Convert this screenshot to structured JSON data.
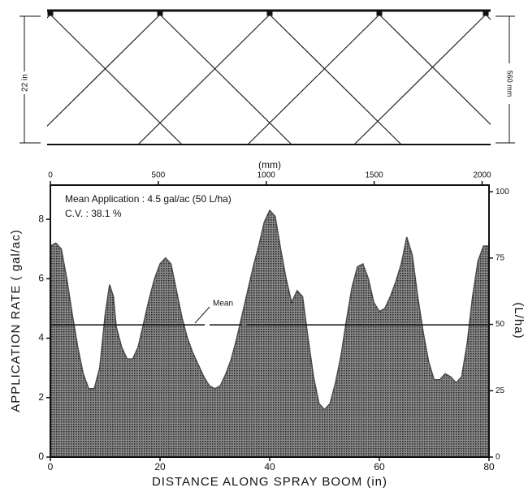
{
  "chart_data": {
    "type": "area",
    "color": "#4a4a4a",
    "boom_height_label": "22 in",
    "boom_height_metric_label": "560 mm",
    "annotations": [
      "Mean Application : 4.5 gal/ac (50 L/ha)",
      "C.V. : 38.1 %"
    ],
    "mean": 4.45,
    "mean_label": "Mean",
    "xlabel": "DISTANCE ALONG SPRAY BOOM (in)",
    "ylabel": "APPLICATION RATE ( gal/ac)",
    "y2label": "(L/ha)",
    "x2label": "(mm)",
    "x": [
      0,
      1,
      2,
      3,
      4,
      5,
      6,
      7,
      8,
      9,
      10,
      10.8,
      11.5,
      12,
      13,
      14,
      15,
      16,
      17,
      18,
      19,
      20,
      21,
      22,
      23,
      24,
      25,
      26,
      27,
      28,
      29,
      30,
      31,
      32,
      33,
      34,
      35,
      36,
      37,
      38,
      39,
      40,
      41,
      42,
      43,
      44,
      45,
      46,
      47,
      48,
      49,
      50,
      51,
      52,
      53,
      54,
      55,
      56,
      57,
      58,
      59,
      60,
      61,
      62,
      63,
      64,
      65,
      66,
      67,
      68,
      69,
      70,
      71,
      72,
      73,
      74,
      75,
      76,
      77,
      78,
      79,
      80
    ],
    "values": [
      7.1,
      7.2,
      7.0,
      6.0,
      4.8,
      3.7,
      2.8,
      2.3,
      2.3,
      3.0,
      4.8,
      5.8,
      5.4,
      4.4,
      3.7,
      3.3,
      3.3,
      3.7,
      4.5,
      5.3,
      6.0,
      6.5,
      6.7,
      6.5,
      5.6,
      4.7,
      4.0,
      3.5,
      3.1,
      2.7,
      2.4,
      2.3,
      2.4,
      2.8,
      3.3,
      4.0,
      4.8,
      5.6,
      6.4,
      7.1,
      7.9,
      8.3,
      8.1,
      7.0,
      6.0,
      5.2,
      5.6,
      5.4,
      4.0,
      2.7,
      1.8,
      1.6,
      1.8,
      2.5,
      3.4,
      4.6,
      5.7,
      6.4,
      6.5,
      6.0,
      5.2,
      4.9,
      5.0,
      5.4,
      5.9,
      6.5,
      7.4,
      6.8,
      5.4,
      4.2,
      3.2,
      2.6,
      2.6,
      2.8,
      2.7,
      2.5,
      2.7,
      3.8,
      5.4,
      6.6,
      7.1,
      7.1
    ],
    "xlim": [
      0,
      80
    ],
    "xticks": [
      0,
      20,
      40,
      60,
      80
    ],
    "ylim": [
      0,
      9.15
    ],
    "yticks": [
      0,
      2,
      4,
      6,
      8
    ],
    "x2lim": [
      0,
      2032
    ],
    "x2ticks": [
      0,
      500,
      1000,
      1500,
      2000
    ],
    "y2lim": [
      0,
      102.5
    ],
    "y2ticks": [
      0,
      25,
      50,
      75,
      100
    ]
  }
}
